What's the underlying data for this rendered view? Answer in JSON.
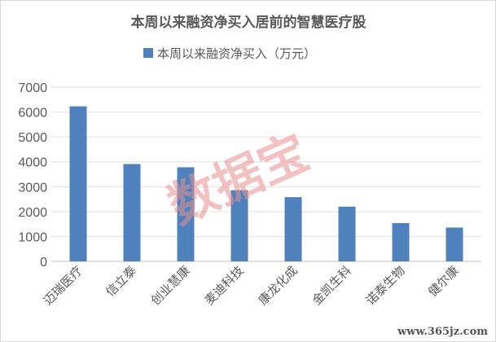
{
  "chart_data": {
    "type": "bar",
    "title": "本周以来融资净买入居前的智慧医疗股",
    "categories": [
      "迈瑞医疗",
      "信立泰",
      "创业慧康",
      "麦迪科技",
      "康龙化成",
      "金凯生科",
      "诺泰生物",
      "健尔康"
    ],
    "series": [
      {
        "name": "本周以来融资净买入（万元）",
        "values": [
          6230,
          3910,
          3780,
          2860,
          2580,
          2200,
          1540,
          1360
        ]
      }
    ],
    "ylim": [
      0,
      7000
    ],
    "yticks": [
      "0",
      "1000",
      "2000",
      "3000",
      "4000",
      "5000",
      "6000",
      "7000"
    ],
    "xlabel": "",
    "ylabel": "",
    "grid": true,
    "legend_position": "top",
    "bar_color": "#4f81bd"
  },
  "watermark": "数据宝",
  "site_mark": "www.365jz.com"
}
